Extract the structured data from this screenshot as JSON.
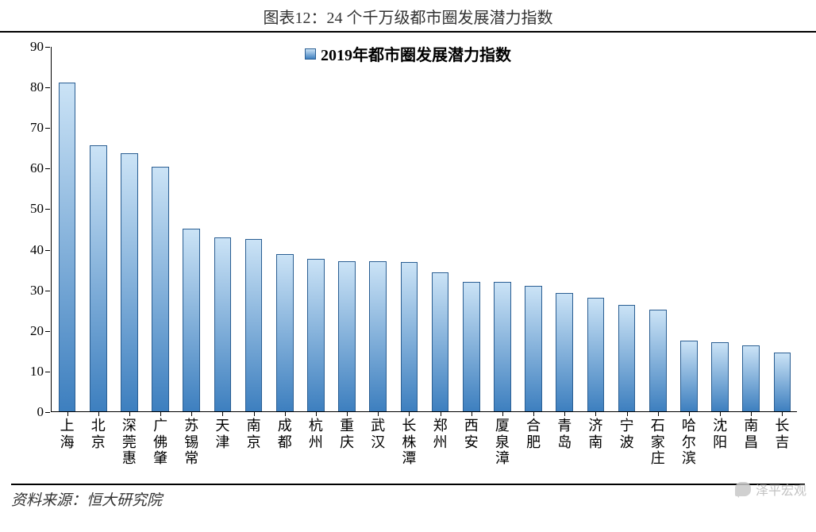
{
  "title": "图表12：24 个千万级都市圈发展潜力指数",
  "source_label": "资料来源：恒大研究院",
  "watermark_text": "泽平宏观",
  "chart": {
    "type": "bar",
    "legend_label": "2019年都市圈发展潜力指数",
    "categories": [
      "上海",
      "北京",
      "深莞惠",
      "广佛肇",
      "苏锡常",
      "天津",
      "南京",
      "成都",
      "杭州",
      "重庆",
      "武汉",
      "长株潭",
      "郑州",
      "西安",
      "厦泉漳",
      "合肥",
      "青岛",
      "济南",
      "宁波",
      "石家庄",
      "哈尔滨",
      "沈阳",
      "南昌",
      "长吉"
    ],
    "values": [
      81,
      65.5,
      63.5,
      60.2,
      45,
      42.8,
      42.5,
      38.8,
      37.6,
      37,
      37,
      36.7,
      34.2,
      31.8,
      31.8,
      30.9,
      29.2,
      28,
      26.3,
      25,
      17.4,
      17,
      16.3,
      14.4
    ],
    "bar_fill_top": "#cbe3f6",
    "bar_fill_bottom": "#3d7fbf",
    "bar_border": "#2a5e92",
    "ylim": [
      0,
      90
    ],
    "ytick_step": 10,
    "bar_width_ratio": 0.55,
    "background_color": "#ffffff",
    "axis_color": "#000000",
    "tick_fontsize": 17,
    "xlabel_fontsize": 18,
    "legend_fontsize": 20,
    "title_fontsize": 20
  }
}
